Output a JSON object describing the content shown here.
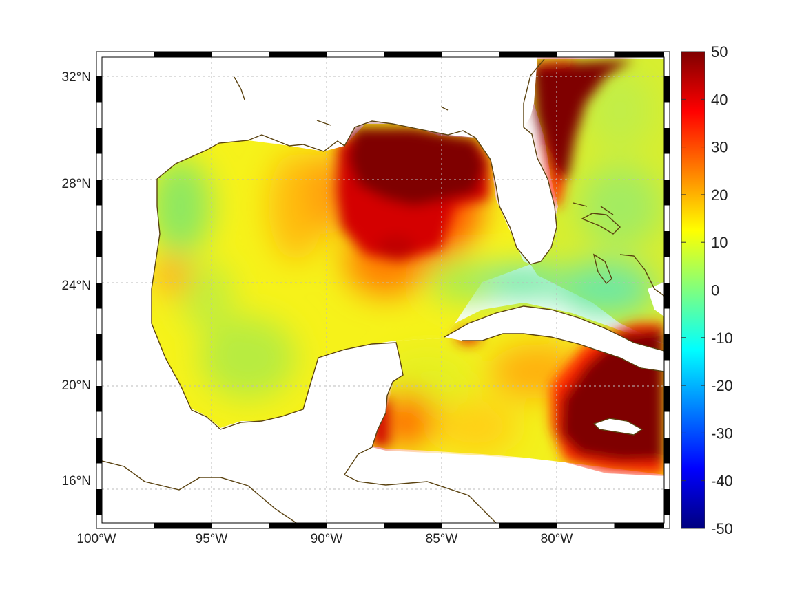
{
  "map": {
    "region": "Gulf of Mexico and western Caribbean",
    "lon_range": [
      -100,
      -75
    ],
    "lat_range": [
      14,
      32.9
    ],
    "x_ticks": [
      {
        "lon": -100,
        "label": "100°W"
      },
      {
        "lon": -95,
        "label": "95°W"
      },
      {
        "lon": -90,
        "label": "90°W"
      },
      {
        "lon": -85,
        "label": "85°W"
      },
      {
        "lon": -80,
        "label": "80°W"
      }
    ],
    "y_ticks": [
      {
        "lat": 32,
        "label": "32°N"
      },
      {
        "lat": 28,
        "label": "28°N"
      },
      {
        "lat": 24,
        "label": "24°N"
      },
      {
        "lat": 20,
        "label": "20°N"
      },
      {
        "lat": 16,
        "label": "16°N"
      }
    ],
    "grid": true,
    "frame_style": "alternating black/white border"
  },
  "colorbar": {
    "colormap": "jet",
    "min": -50,
    "max": 50,
    "ticks": [
      "50",
      "40",
      "30",
      "20",
      "10",
      "0",
      "-10",
      "-20",
      "-30",
      "-40",
      "-50"
    ],
    "position": "right"
  },
  "colors": {
    "coastline": "#5a4210",
    "saturated_high": "#7f0000",
    "background": "#ffffff"
  }
}
